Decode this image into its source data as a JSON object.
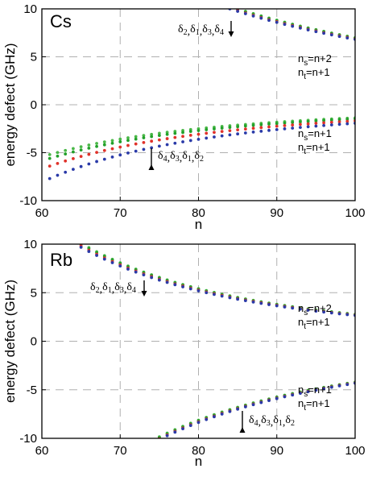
{
  "colors": {
    "delta1": "#22a02a",
    "delta2": "#4ab848",
    "delta3": "#e0322a",
    "delta4": "#2a3aa8",
    "grid": "#b0b0b0",
    "frame": "#000000"
  },
  "chart_data": [
    {
      "type": "scatter",
      "panel_label": "Cs",
      "xlabel": "n",
      "ylabel": "energy defect (GHz)",
      "xlim": [
        60,
        100
      ],
      "ylim": [
        -10,
        10
      ],
      "x_ticks": [
        "60",
        "70",
        "80",
        "90",
        "100"
      ],
      "y_ticks": [
        "10",
        "5",
        "0",
        "-5",
        "-10"
      ],
      "grid": "dashed",
      "annotations": [
        {
          "id": "upper",
          "arrow": "down",
          "order": [
            "δ2",
            "δ1",
            "δ3",
            "δ4"
          ]
        },
        {
          "id": "lower",
          "arrow": "up",
          "order": [
            "δ4",
            "δ3",
            "δ1",
            "δ2"
          ]
        }
      ],
      "branch_labels": [
        {
          "ns": "n+2",
          "nt": "n+1"
        },
        {
          "ns": "n+1",
          "nt": "n+1"
        }
      ],
      "series": [
        {
          "branch": "upper",
          "color_key": "delta2",
          "A": 10.0,
          "n0": 85.0,
          "p": 2.2
        },
        {
          "branch": "upper",
          "color_key": "delta1",
          "A": 10.0,
          "n0": 84.8,
          "p": 2.2
        },
        {
          "branch": "upper",
          "color_key": "delta3",
          "A": 10.0,
          "n0": 84.3,
          "p": 2.2
        },
        {
          "branch": "upper",
          "color_key": "delta4",
          "A": 10.0,
          "n0": 84.0,
          "p": 2.2
        },
        {
          "branch": "lower",
          "color_key": "delta2",
          "A": -5.2,
          "n0": 61.0,
          "p": 2.7
        },
        {
          "branch": "lower",
          "color_key": "delta1",
          "A": -5.6,
          "n0": 61.0,
          "p": 2.7
        },
        {
          "branch": "lower",
          "color_key": "delta3",
          "A": -6.4,
          "n0": 61.0,
          "p": 2.7
        },
        {
          "branch": "lower",
          "color_key": "delta4",
          "A": -7.7,
          "n0": 61.0,
          "p": 2.8
        }
      ]
    },
    {
      "type": "scatter",
      "panel_label": "Rb",
      "xlabel": "n",
      "ylabel": "energy defect (GHz)",
      "xlim": [
        60,
        100
      ],
      "ylim": [
        -10,
        10
      ],
      "x_ticks": [
        "60",
        "70",
        "80",
        "90",
        "100"
      ],
      "y_ticks": [
        "10",
        "5",
        "0",
        "-5",
        "-10"
      ],
      "grid": "dashed",
      "annotations": [
        {
          "id": "upper",
          "arrow": "down",
          "order": [
            "δ2",
            "δ1",
            "δ3",
            "δ4"
          ]
        },
        {
          "id": "lower",
          "arrow": "up",
          "order": [
            "δ4",
            "δ3",
            "δ1",
            "δ2"
          ]
        }
      ],
      "branch_labels": [
        {
          "ns": "n+2",
          "nt": "n+1"
        },
        {
          "ns": "n+1",
          "nt": "n+1"
        }
      ],
      "series": [
        {
          "branch": "upper",
          "color_key": "delta2",
          "A": 10.0,
          "n0": 65.2,
          "p": 3.0
        },
        {
          "branch": "upper",
          "color_key": "delta1",
          "A": 10.0,
          "n0": 65.0,
          "p": 3.0
        },
        {
          "branch": "upper",
          "color_key": "delta3",
          "A": 10.0,
          "n0": 64.6,
          "p": 3.0
        },
        {
          "branch": "upper",
          "color_key": "delta4",
          "A": 10.0,
          "n0": 64.3,
          "p": 3.0
        },
        {
          "branch": "lower",
          "color_key": "delta2",
          "A": -10.0,
          "n0": 74.6,
          "p": 2.95
        },
        {
          "branch": "lower",
          "color_key": "delta1",
          "A": -10.0,
          "n0": 74.8,
          "p": 2.95
        },
        {
          "branch": "lower",
          "color_key": "delta3",
          "A": -10.0,
          "n0": 75.1,
          "p": 2.95
        },
        {
          "branch": "lower",
          "color_key": "delta4",
          "A": -10.0,
          "n0": 75.3,
          "p": 2.95
        }
      ]
    }
  ]
}
